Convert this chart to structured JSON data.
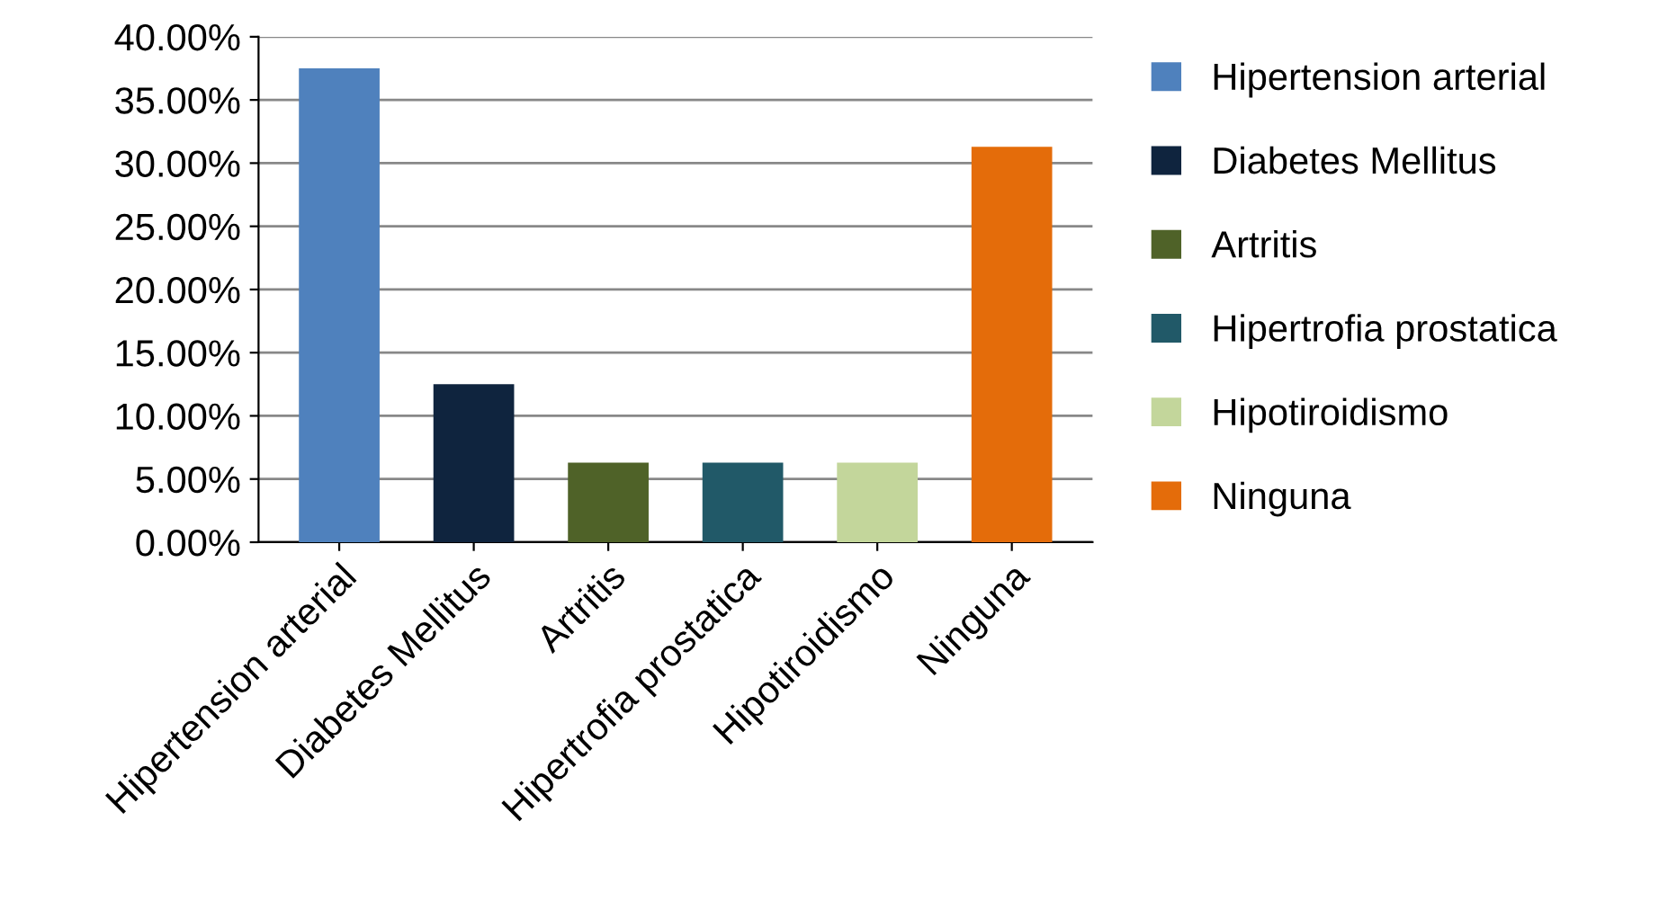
{
  "chart_data": {
    "type": "bar",
    "categories": [
      "Hipertension arterial",
      "Diabetes Mellitus",
      "Artritis",
      "Hipertrofia prostatica",
      "Hipotiroidismo",
      "Ninguna"
    ],
    "series": [
      {
        "name": "Hipertension arterial",
        "color": "#4f81bd",
        "values": [
          37.5,
          null,
          null,
          null,
          null,
          null
        ]
      },
      {
        "name": "Diabetes Mellitus",
        "color": "#0f243e",
        "values": [
          null,
          12.5,
          null,
          null,
          null,
          null
        ]
      },
      {
        "name": "Artritis",
        "color": "#4f6228",
        "values": [
          null,
          null,
          6.3,
          null,
          null,
          null
        ]
      },
      {
        "name": "Hipertrofia prostatica",
        "color": "#215968",
        "values": [
          null,
          null,
          null,
          6.3,
          null,
          null
        ]
      },
      {
        "name": "Hipotiroidismo",
        "color": "#c3d69b",
        "values": [
          null,
          null,
          null,
          null,
          6.3,
          null
        ]
      },
      {
        "name": "Ninguna",
        "color": "#e46c0a",
        "values": [
          null,
          null,
          null,
          null,
          null,
          31.3
        ]
      }
    ],
    "ylim": [
      0,
      40
    ],
    "yticks": [
      {
        "value": 0,
        "label": "0.00%"
      },
      {
        "value": 5,
        "label": "5.00%"
      },
      {
        "value": 10,
        "label": "10.00%"
      },
      {
        "value": 15,
        "label": "15.00%"
      },
      {
        "value": 20,
        "label": "20.00%"
      },
      {
        "value": 25,
        "label": "25.00%"
      },
      {
        "value": 30,
        "label": "30.00%"
      },
      {
        "value": 35,
        "label": "35.00%"
      },
      {
        "value": 40,
        "label": "40.00%"
      }
    ],
    "grid": "y",
    "legend": "right"
  }
}
